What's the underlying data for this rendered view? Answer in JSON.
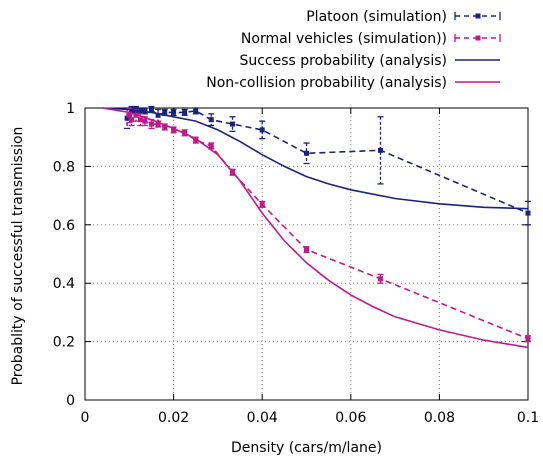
{
  "chart_data": {
    "type": "line",
    "title": "",
    "xlabel": "Density (cars/m/lane)",
    "ylabel": "Probablity of successful transmission",
    "xlim": [
      0,
      0.1
    ],
    "ylim": [
      0,
      1
    ],
    "xticks": [
      0,
      0.02,
      0.04,
      0.06,
      0.08,
      0.1
    ],
    "xtick_labels": [
      "0",
      "0.02",
      "0.04",
      "0.06",
      "0.08",
      "0.1"
    ],
    "yticks": [
      0,
      0.2,
      0.4,
      0.6,
      0.8,
      1
    ],
    "ytick_labels": [
      "0",
      "0.2",
      "0.4",
      "0.6",
      "0.8",
      "1"
    ],
    "grid": true,
    "legend_position": "top-right",
    "series": [
      {
        "name": "Platoon (simulation)",
        "style": "dashed-with-markers",
        "color": "#1a237e",
        "points": [
          {
            "x": 0.0095,
            "y": 0.965,
            "err": 0.035
          },
          {
            "x": 0.0105,
            "y": 0.995,
            "err": 0.01
          },
          {
            "x": 0.0115,
            "y": 0.995,
            "err": 0.01
          },
          {
            "x": 0.0125,
            "y": 0.99,
            "err": 0.01
          },
          {
            "x": 0.0135,
            "y": 0.99,
            "err": 0.01
          },
          {
            "x": 0.015,
            "y": 0.995,
            "err": 0.01
          },
          {
            "x": 0.0165,
            "y": 0.975,
            "err": 0.02
          },
          {
            "x": 0.018,
            "y": 0.985,
            "err": 0.01
          },
          {
            "x": 0.02,
            "y": 0.985,
            "err": 0.01
          },
          {
            "x": 0.0225,
            "y": 0.985,
            "err": 0.01
          },
          {
            "x": 0.025,
            "y": 0.99,
            "err": 0.01
          },
          {
            "x": 0.0285,
            "y": 0.96,
            "err": 0.02
          },
          {
            "x": 0.0333,
            "y": 0.945,
            "err": 0.025
          },
          {
            "x": 0.04,
            "y": 0.925,
            "err": 0.03
          },
          {
            "x": 0.05,
            "y": 0.845,
            "err": 0.035
          },
          {
            "x": 0.0667,
            "y": 0.855,
            "err": 0.115
          },
          {
            "x": 0.1,
            "y": 0.64,
            "err": 0.04
          }
        ]
      },
      {
        "name": "Normal vehicles (simulation))",
        "style": "dashed-with-markers",
        "color": "#c2188a",
        "points": [
          {
            "x": 0.01,
            "y": 0.975,
            "err": 0.025
          },
          {
            "x": 0.0105,
            "y": 0.96,
            "err": 0.02
          },
          {
            "x": 0.0115,
            "y": 0.975,
            "err": 0.02
          },
          {
            "x": 0.0125,
            "y": 0.96,
            "err": 0.02
          },
          {
            "x": 0.0135,
            "y": 0.955,
            "err": 0.015
          },
          {
            "x": 0.015,
            "y": 0.945,
            "err": 0.015
          },
          {
            "x": 0.0165,
            "y": 0.945,
            "err": 0.01
          },
          {
            "x": 0.018,
            "y": 0.935,
            "err": 0.01
          },
          {
            "x": 0.02,
            "y": 0.925,
            "err": 0.01
          },
          {
            "x": 0.0225,
            "y": 0.915,
            "err": 0.01
          },
          {
            "x": 0.025,
            "y": 0.89,
            "err": 0.01
          },
          {
            "x": 0.0285,
            "y": 0.87,
            "err": 0.01
          },
          {
            "x": 0.0333,
            "y": 0.78,
            "err": 0.01
          },
          {
            "x": 0.04,
            "y": 0.67,
            "err": 0.01
          },
          {
            "x": 0.05,
            "y": 0.515,
            "err": 0.01
          },
          {
            "x": 0.0667,
            "y": 0.415,
            "err": 0.015
          },
          {
            "x": 0.1,
            "y": 0.21,
            "err": 0.01
          }
        ]
      },
      {
        "name": "Success probability (analysis)",
        "style": "solid",
        "color": "#1a237e",
        "points": [
          {
            "x": 0.004,
            "y": 1.0
          },
          {
            "x": 0.01,
            "y": 0.995
          },
          {
            "x": 0.015,
            "y": 0.985
          },
          {
            "x": 0.02,
            "y": 0.97
          },
          {
            "x": 0.025,
            "y": 0.955
          },
          {
            "x": 0.03,
            "y": 0.925
          },
          {
            "x": 0.035,
            "y": 0.885
          },
          {
            "x": 0.04,
            "y": 0.84
          },
          {
            "x": 0.045,
            "y": 0.8
          },
          {
            "x": 0.05,
            "y": 0.765
          },
          {
            "x": 0.055,
            "y": 0.74
          },
          {
            "x": 0.06,
            "y": 0.72
          },
          {
            "x": 0.07,
            "y": 0.69
          },
          {
            "x": 0.08,
            "y": 0.672
          },
          {
            "x": 0.09,
            "y": 0.66
          },
          {
            "x": 0.1,
            "y": 0.655
          }
        ]
      },
      {
        "name": "Non-collision probability (analysis)",
        "style": "solid",
        "color": "#c2188a",
        "points": [
          {
            "x": 0.004,
            "y": 1.0
          },
          {
            "x": 0.01,
            "y": 0.985
          },
          {
            "x": 0.015,
            "y": 0.96
          },
          {
            "x": 0.02,
            "y": 0.93
          },
          {
            "x": 0.025,
            "y": 0.895
          },
          {
            "x": 0.03,
            "y": 0.84
          },
          {
            "x": 0.035,
            "y": 0.75
          },
          {
            "x": 0.04,
            "y": 0.64
          },
          {
            "x": 0.045,
            "y": 0.545
          },
          {
            "x": 0.05,
            "y": 0.47
          },
          {
            "x": 0.055,
            "y": 0.41
          },
          {
            "x": 0.06,
            "y": 0.36
          },
          {
            "x": 0.065,
            "y": 0.32
          },
          {
            "x": 0.07,
            "y": 0.285
          },
          {
            "x": 0.08,
            "y": 0.24
          },
          {
            "x": 0.09,
            "y": 0.205
          },
          {
            "x": 0.1,
            "y": 0.18
          }
        ]
      }
    ]
  }
}
